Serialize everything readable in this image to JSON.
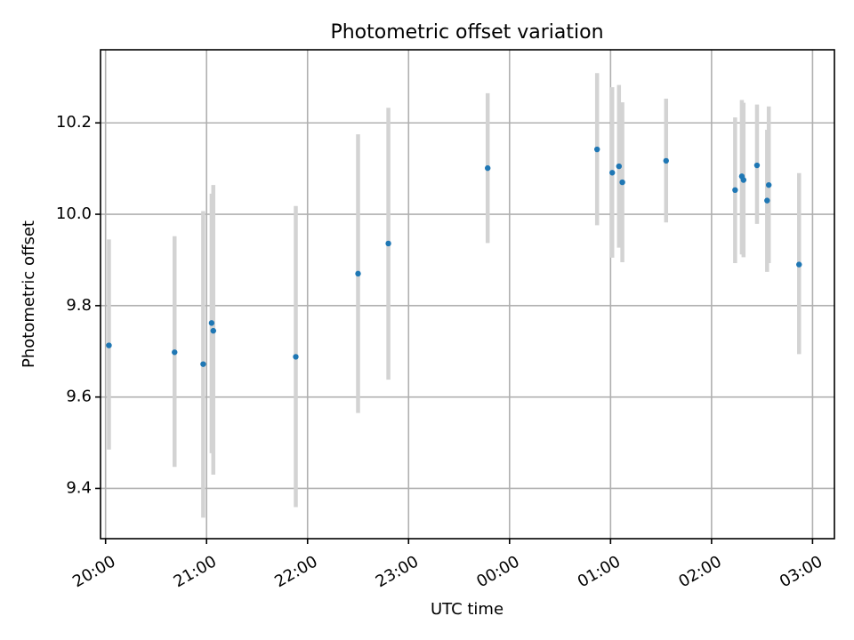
{
  "chart_data": {
    "type": "scatter",
    "title": "Photometric offset variation",
    "xlabel": "UTC time",
    "ylabel": "Photometric offset",
    "x_unit": "UTC time",
    "xlim": [
      "19:57",
      "03:13"
    ],
    "ylim": [
      9.29,
      10.36
    ],
    "grid": true,
    "x_ticks": [
      {
        "label": "20:00",
        "t": "20:00"
      },
      {
        "label": "21:00",
        "t": "21:00"
      },
      {
        "label": "22:00",
        "t": "22:00"
      },
      {
        "label": "23:00",
        "t": "23:00"
      },
      {
        "label": "00:00",
        "t": "00:00"
      },
      {
        "label": "01:00",
        "t": "01:00"
      },
      {
        "label": "02:00",
        "t": "02:00"
      },
      {
        "label": "03:00",
        "t": "03:00"
      }
    ],
    "y_ticks": [
      {
        "label": "9.4",
        "v": 9.4
      },
      {
        "label": "9.6",
        "v": 9.6
      },
      {
        "label": "9.8",
        "v": 9.8
      },
      {
        "label": "10.0",
        "v": 10.0
      },
      {
        "label": "10.2",
        "v": 10.2
      }
    ],
    "colors": {
      "point": "#1f77b4",
      "errorbar": "#d3d3d3"
    },
    "points": [
      {
        "t": "20:02",
        "y": 9.713,
        "ylo": 9.485,
        "yhi": 9.945
      },
      {
        "t": "20:41",
        "y": 9.698,
        "ylo": 9.447,
        "yhi": 9.952
      },
      {
        "t": "20:58",
        "y": 9.672,
        "ylo": 9.336,
        "yhi": 10.007
      },
      {
        "t": "21:03",
        "y": 9.762,
        "ylo": 9.477,
        "yhi": 10.045
      },
      {
        "t": "21:04",
        "y": 9.745,
        "ylo": 9.43,
        "yhi": 10.064
      },
      {
        "t": "21:53",
        "y": 9.688,
        "ylo": 9.359,
        "yhi": 10.018
      },
      {
        "t": "22:30",
        "y": 9.87,
        "ylo": 9.565,
        "yhi": 10.175
      },
      {
        "t": "22:48",
        "y": 9.936,
        "ylo": 9.638,
        "yhi": 10.233
      },
      {
        "t": "23:47",
        "y": 10.101,
        "ylo": 9.937,
        "yhi": 10.265
      },
      {
        "t": "00:52",
        "y": 10.142,
        "ylo": 9.976,
        "yhi": 10.309
      },
      {
        "t": "01:01",
        "y": 10.091,
        "ylo": 9.905,
        "yhi": 10.278
      },
      {
        "t": "01:05",
        "y": 10.105,
        "ylo": 9.927,
        "yhi": 10.283
      },
      {
        "t": "01:07",
        "y": 10.07,
        "ylo": 9.895,
        "yhi": 10.245
      },
      {
        "t": "01:33",
        "y": 10.117,
        "ylo": 9.982,
        "yhi": 10.253
      },
      {
        "t": "02:14",
        "y": 10.053,
        "ylo": 9.893,
        "yhi": 10.212
      },
      {
        "t": "02:18",
        "y": 10.083,
        "ylo": 9.912,
        "yhi": 10.25
      },
      {
        "t": "02:19",
        "y": 10.075,
        "ylo": 9.906,
        "yhi": 10.244
      },
      {
        "t": "02:27",
        "y": 10.107,
        "ylo": 9.979,
        "yhi": 10.24
      },
      {
        "t": "02:33",
        "y": 10.03,
        "ylo": 9.874,
        "yhi": 10.185
      },
      {
        "t": "02:34",
        "y": 10.064,
        "ylo": 9.893,
        "yhi": 10.236
      },
      {
        "t": "02:52",
        "y": 9.89,
        "ylo": 9.694,
        "yhi": 10.09
      }
    ]
  }
}
